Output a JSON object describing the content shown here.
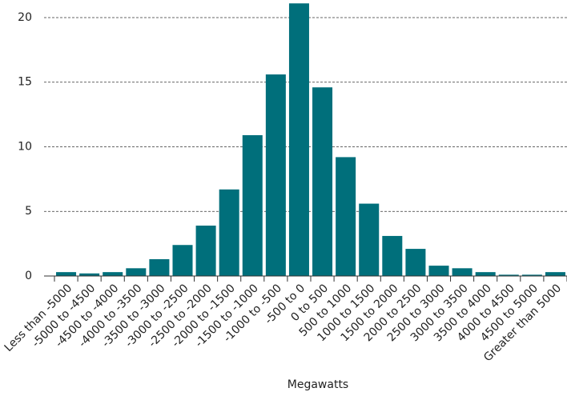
{
  "chart_data": {
    "type": "bar",
    "xlabel": "Megawatts",
    "categories": [
      "Less than -5000",
      "-5000 to -4500",
      "-4500 to -4000",
      "-4000 to -3500",
      "-3500 to -3000",
      "-3000 to -2500",
      "-2500 to -2000",
      "-2000 to -1500",
      "-1500 to -1000",
      "-1000 to -500",
      "-500 to 0",
      "0 to 500",
      "500 to 1000",
      "1000 to 1500",
      "1500 to 2000",
      "2000 to 2500",
      "2500 to 3000",
      "3000 to 3500",
      "3500 to 4000",
      "4000 to 4500",
      "4500 to 5000",
      "Greater than 5000"
    ],
    "values": [
      0.3,
      0.2,
      0.3,
      0.6,
      1.3,
      2.4,
      3.9,
      6.7,
      10.9,
      15.6,
      21.1,
      14.6,
      9.2,
      5.6,
      3.1,
      2.1,
      0.8,
      0.6,
      0.3,
      0.1,
      0.1,
      0.3
    ],
    "color": "#006f7b",
    "ylim": [
      0,
      21.3
    ],
    "yticks": [
      0,
      5,
      10,
      15,
      20
    ],
    "grid": true
  }
}
